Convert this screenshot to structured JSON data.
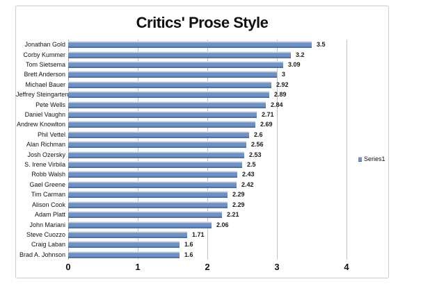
{
  "chart": {
    "title": "Critics' Prose Style",
    "legend": {
      "label": "Series1"
    },
    "x_axis": {
      "tick_labels": [
        "0",
        "1",
        "2",
        "3",
        "4"
      ]
    }
  },
  "chart_data": {
    "type": "bar",
    "orientation": "horizontal",
    "title": "Critics' Prose Style",
    "categories": [
      "Jonathan Gold",
      "Corby Kummer",
      "Tom Sietsema",
      "Brett Anderson",
      "Michael Bauer",
      "Jeffrey Steingarten",
      "Pete Wells",
      "Daniel Vaughn",
      "Andrew Knowlton",
      "Phil Vettel",
      "Alan Richman",
      "Josh Ozersky",
      "S. Irene Virbila",
      "Robb Walsh",
      "Gael Greene",
      "Tim Carman",
      "Alison Cook",
      "Adam Platt",
      "John Mariani",
      "Steve Cuozzo",
      "Craig Laban",
      "Brad A. Johnson"
    ],
    "series": [
      {
        "name": "Series1",
        "values": [
          3.5,
          3.2,
          3.09,
          3,
          2.92,
          2.89,
          2.84,
          2.71,
          2.69,
          2.6,
          2.56,
          2.53,
          2.5,
          2.43,
          2.42,
          2.29,
          2.29,
          2.21,
          2.06,
          1.71,
          1.6,
          1.6
        ]
      }
    ],
    "value_labels": [
      "3.5",
      "3.2",
      "3.09",
      "3",
      "2.92",
      "2.89",
      "2.84",
      "2.71",
      "2.69",
      "2.6",
      "2.56",
      "2.53",
      "2.5",
      "2.43",
      "2.42",
      "2.29",
      "2.29",
      "2.21",
      "2.06",
      "1.71",
      "1.6",
      "1.6"
    ],
    "xlim": [
      0,
      4
    ],
    "xticks": [
      0,
      1,
      2,
      3,
      4
    ],
    "gridlines": true,
    "legend_position": "right",
    "value_labels_shown": true,
    "colors": {
      "bar_main": "#6e92c6",
      "bar_highlight": "#dde6f2",
      "bar_shadow": "#47639a",
      "gridline": "#c3c3c3",
      "category_axis": "#a6a6a6",
      "frame_border": "#cbcbcb",
      "text": "#111111"
    }
  }
}
